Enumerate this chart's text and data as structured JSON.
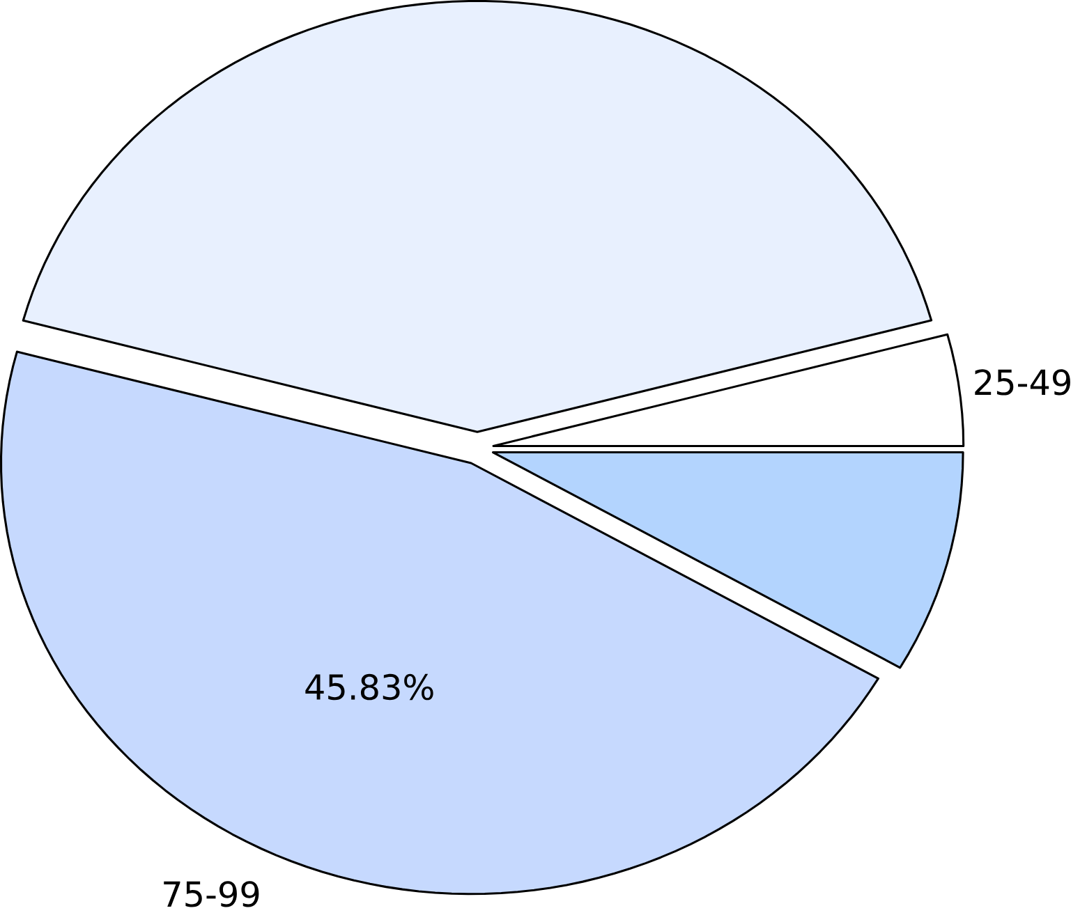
{
  "chart_data": {
    "type": "pie",
    "categories": [
      "25-49",
      null,
      "75-99",
      null
    ],
    "values": [
      4.17,
      41.67,
      45.83,
      8.33
    ],
    "colors": [
      "#ffffff",
      "#e8f0fe",
      "#c6d9fe",
      "#b3d4fe"
    ],
    "value_labels": [
      null,
      null,
      "45.83%",
      null
    ]
  }
}
